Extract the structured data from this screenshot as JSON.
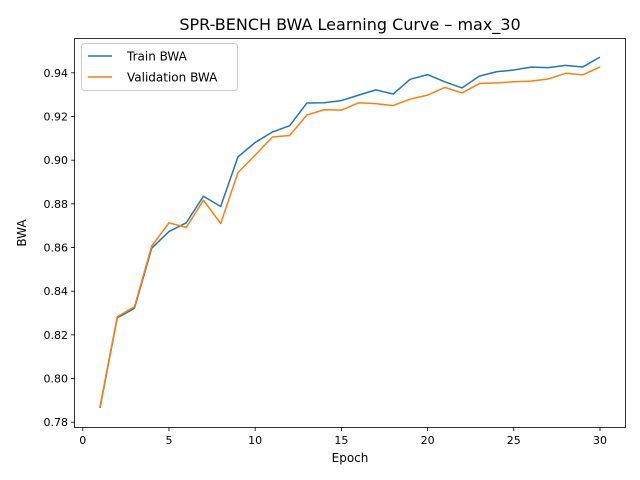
{
  "chart_data": {
    "type": "line",
    "title": "SPR-BENCH BWA Learning Curve – max_30",
    "xlabel": "Epoch",
    "ylabel": "BWA",
    "xlim": [
      -0.45,
      31.45
    ],
    "ylim": [
      0.7778,
      0.9555
    ],
    "xticks": [
      0,
      5,
      10,
      15,
      20,
      25,
      30
    ],
    "yticks": [
      0.78,
      0.8,
      0.82,
      0.84,
      0.86,
      0.88,
      0.9,
      0.92,
      0.94
    ],
    "grid": false,
    "legend": "top-left",
    "x": [
      1,
      2,
      3,
      4,
      5,
      6,
      7,
      8,
      9,
      10,
      11,
      12,
      13,
      14,
      15,
      16,
      17,
      18,
      19,
      20,
      21,
      22,
      23,
      24,
      25,
      26,
      27,
      28,
      29,
      30
    ],
    "series": [
      {
        "name": "Train BWA",
        "color": "#1f77b4",
        "values": [
          0.7865,
          0.8278,
          0.8322,
          0.8597,
          0.8673,
          0.8713,
          0.8835,
          0.8788,
          0.9015,
          0.9081,
          0.9129,
          0.9158,
          0.9262,
          0.9263,
          0.9273,
          0.9298,
          0.9322,
          0.9303,
          0.9371,
          0.9392,
          0.9359,
          0.9331,
          0.9385,
          0.9405,
          0.9413,
          0.9426,
          0.9424,
          0.9434,
          0.9427,
          0.9472
        ]
      },
      {
        "name": "Validation BWA",
        "color": "#ff7f0e",
        "values": [
          0.7872,
          0.8283,
          0.8329,
          0.8607,
          0.8713,
          0.8692,
          0.8817,
          0.871,
          0.8943,
          0.9023,
          0.9106,
          0.9113,
          0.9207,
          0.9231,
          0.9229,
          0.9263,
          0.9259,
          0.925,
          0.928,
          0.9298,
          0.9333,
          0.9308,
          0.9351,
          0.9354,
          0.9359,
          0.9362,
          0.9372,
          0.9398,
          0.9391,
          0.9427
        ]
      }
    ]
  }
}
